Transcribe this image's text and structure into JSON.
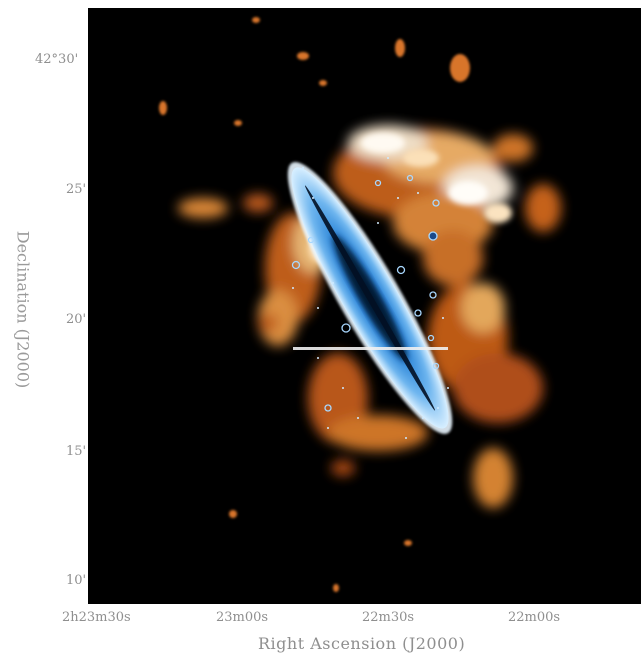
{
  "axes": {
    "y_ticks": [
      "42°30'",
      "25'",
      "20'",
      "15'",
      "10'"
    ],
    "x_ticks": [
      "2h23m30s",
      "23m00s",
      "22m30s",
      "22m00s"
    ],
    "x_label": "Right Ascension (J2000)",
    "y_label": "Declination (J2000)"
  },
  "colors": {
    "background": "#000000",
    "optical_galaxy": "#2f8fe0",
    "hi_emission": "#e8862a"
  }
}
